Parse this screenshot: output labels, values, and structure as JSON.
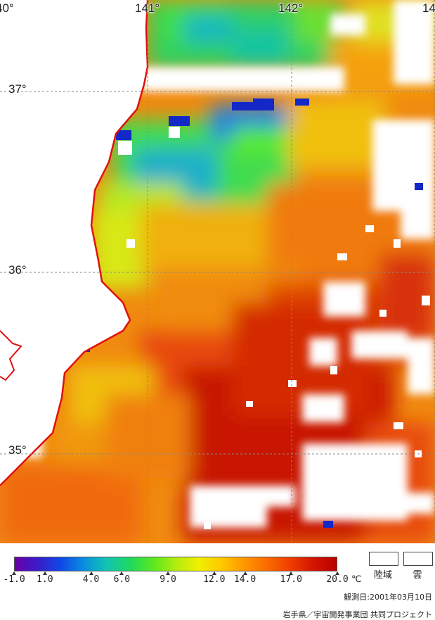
{
  "map": {
    "lon_labels": [
      "40°",
      "141°",
      "142°",
      "14"
    ],
    "lat_labels": [
      "37°",
      "36°",
      "35°"
    ]
  },
  "colorbar": {
    "colors": [
      "#6a00a8",
      "#3a1cc8",
      "#1048e8",
      "#0a8ee0",
      "#12c4b4",
      "#1ed860",
      "#58e820",
      "#b2ec10",
      "#f0f000",
      "#ffc800",
      "#ff9600",
      "#fb6a00",
      "#ee3c00",
      "#d41400",
      "#b80000"
    ],
    "ticks": [
      "-1.0",
      "1.0",
      "4.0",
      "6.0",
      "9.0",
      "12.0",
      "14.0",
      "17.0",
      "20.0"
    ],
    "tick_values": [
      -1,
      1,
      4,
      6,
      9,
      12,
      14,
      17,
      20
    ],
    "min": -1,
    "max": 20,
    "unit": "℃"
  },
  "key": {
    "land_label": "陸域",
    "cloud_label": "雲"
  },
  "footer": {
    "date_text": "観測日:2001年03月10日",
    "credit_text": "岩手県／宇宙開発事業団 共同プロジェクト"
  }
}
